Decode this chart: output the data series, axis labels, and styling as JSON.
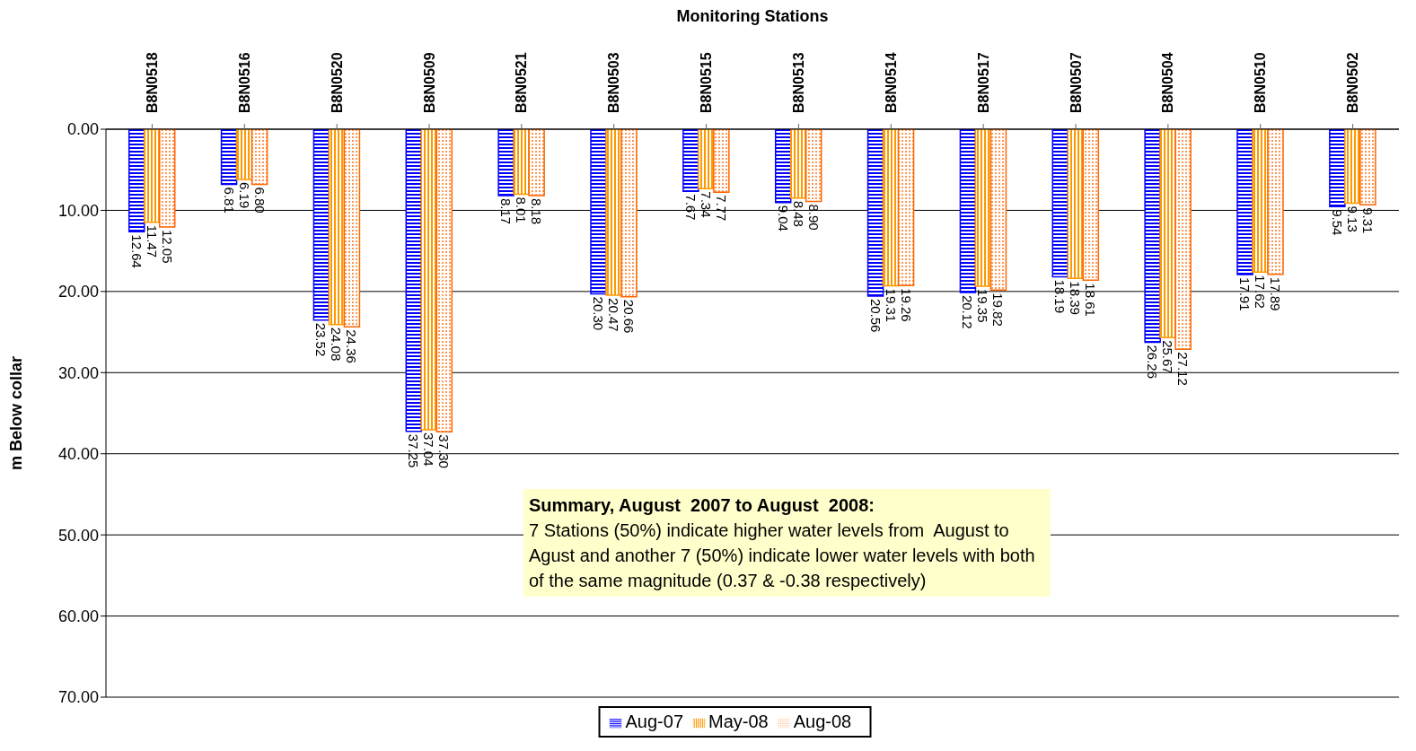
{
  "chart_data": {
    "type": "bar",
    "xlabel": "Monitoring Stations",
    "ylabel": "m Below collar",
    "categories": [
      "B8N0518",
      "B8N0516",
      "B8N0520",
      "B8N0509",
      "B8N0521",
      "B8N0503",
      "B8N0515",
      "B8N0513",
      "B8N0514",
      "B8N0517",
      "B8N0507",
      "B8N0504",
      "B8N0510",
      "B8N0502"
    ],
    "series": [
      {
        "name": "Aug-07",
        "color": "#0000ff",
        "values": [
          12.64,
          6.81,
          23.52,
          37.25,
          8.17,
          20.3,
          7.67,
          9.04,
          20.56,
          20.12,
          18.19,
          26.26,
          17.91,
          9.54
        ],
        "value_labels": [
          "12.64",
          "6.81",
          "23.52",
          "37.25",
          "8.17",
          "20.30",
          "7.67",
          "9.04",
          "20.56",
          "20.12",
          "18.19",
          "26.26",
          "17.91",
          "9.54"
        ]
      },
      {
        "name": "May-08",
        "color": "#ff9900",
        "values": [
          11.47,
          6.19,
          24.08,
          37.04,
          8.01,
          20.47,
          7.34,
          8.48,
          19.31,
          19.35,
          18.39,
          25.67,
          17.62,
          9.13
        ],
        "value_labels": [
          "11.47",
          "6.19",
          "24.08",
          "37.04",
          "8.01",
          "20.47",
          "7.34",
          "8.48",
          "19.31",
          "19.35",
          "18.39",
          "25.67",
          "17.62",
          "9.13"
        ]
      },
      {
        "name": "Aug-08",
        "color": "#ff6600",
        "values": [
          12.05,
          6.8,
          24.36,
          37.3,
          8.18,
          20.66,
          7.77,
          8.9,
          19.26,
          19.82,
          18.61,
          27.12,
          17.89,
          9.31
        ],
        "value_labels": [
          "12.05",
          "6.80",
          "24.36",
          "37.30",
          "8.18",
          "20.66",
          "7.77",
          "8.90",
          "19.26",
          "19.82",
          "18.61",
          "27.12",
          "17.89",
          "9.31"
        ]
      }
    ],
    "ylim": [
      70,
      0
    ],
    "yticks": [
      {
        "value": 0,
        "label": "0.00"
      },
      {
        "value": 10,
        "label": "10.00"
      },
      {
        "value": 20,
        "label": "20.00"
      },
      {
        "value": 30,
        "label": "30.00"
      },
      {
        "value": 40,
        "label": "40.00"
      },
      {
        "value": 50,
        "label": "50.00"
      },
      {
        "value": 60,
        "label": "60.00"
      },
      {
        "value": 70,
        "label": "70.00"
      }
    ],
    "grid": "y",
    "legend": "bottom",
    "annotations": [
      "Summary, August  2007 to August  2008:",
      "7 Stations (50%) indicate higher water levels from  August to Agust and another 7 (50%) indicate lower water levels with both of the same magnitude (0.37 & -0.38 respectively)"
    ]
  }
}
